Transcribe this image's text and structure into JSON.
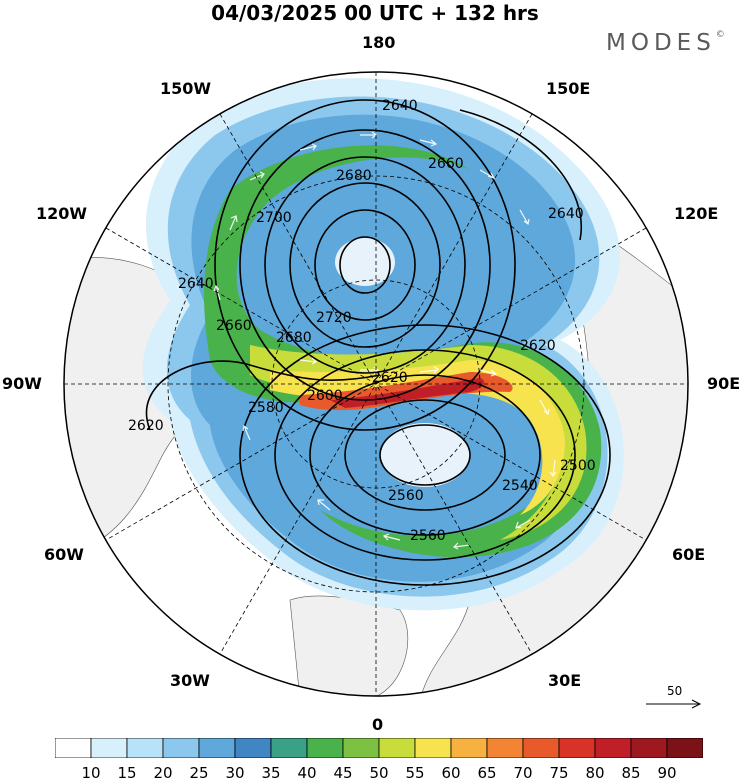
{
  "title": "04/03/2025  00 UTC  + 132 hrs",
  "brand": "MODES",
  "brand_mark": "©",
  "longitude_labels": {
    "lon_180": "180",
    "lon_150w": "150W",
    "lon_150e": "150E",
    "lon_120w": "120W",
    "lon_120e": "120E",
    "lon_90w": "90W",
    "lon_90e": "90E",
    "lon_60w": "60W",
    "lon_60e": "60E",
    "lon_30w": "30W",
    "lon_30e": "30E",
    "lon_0": "0"
  },
  "height_contour_labels": [
    "2640",
    "2660",
    "2680",
    "2700",
    "2720",
    "2640",
    "2640",
    "2660",
    "2680",
    "2620",
    "2620",
    "2620",
    "2600",
    "2580",
    "2500",
    "2540",
    "2560",
    "2560"
  ],
  "reference_vector": {
    "value": "50",
    "icon": "right-arrow-icon"
  },
  "colorbar": {
    "labels": [
      "10",
      "15",
      "20",
      "25",
      "30",
      "35",
      "40",
      "45",
      "50",
      "55",
      "60",
      "65",
      "70",
      "75",
      "80",
      "85",
      "90"
    ],
    "colors": [
      "#ffffff",
      "#d8f0fb",
      "#b8e2f7",
      "#8cc8ee",
      "#5ea8dc",
      "#3f86c3",
      "#3aa186",
      "#49b24b",
      "#7cc142",
      "#c8dc3c",
      "#f7e34e",
      "#f6b140",
      "#f28433",
      "#e85a2c",
      "#d93226",
      "#c01f27",
      "#9e1820",
      "#7a1218"
    ]
  },
  "colors": {
    "land": "#f0f0f0",
    "contour": "#000000",
    "arrows": "#ffffff"
  }
}
